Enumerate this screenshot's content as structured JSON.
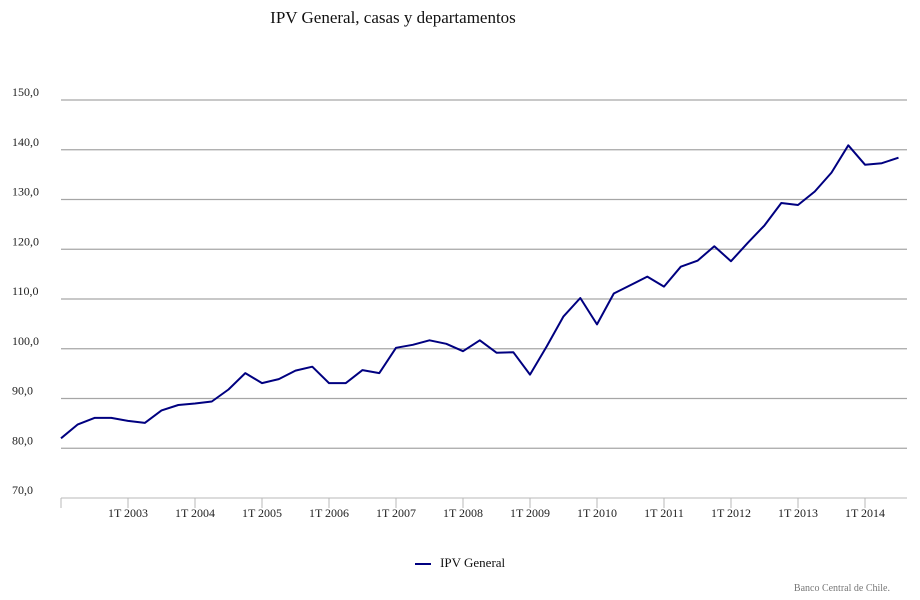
{
  "chart_data": {
    "type": "line",
    "title": "IPV General, casas y departamentos",
    "xlabel": "",
    "ylabel": "",
    "ylim": [
      70,
      150
    ],
    "yticks": [
      "70,0",
      "80,0",
      "90,0",
      "100,0",
      "110,0",
      "120,0",
      "130,0",
      "140,0",
      "150,0"
    ],
    "xticks": [
      "1T 2003",
      "1T 2004",
      "1T 2005",
      "1T 2006",
      "1T 2007",
      "1T 2008",
      "1T 2009",
      "1T 2010",
      "1T 2011",
      "1T 2012",
      "1T 2013",
      "1T 2014"
    ],
    "x": [
      "1T 2002",
      "2T 2002",
      "3T 2002",
      "4T 2002",
      "1T 2003",
      "2T 2003",
      "3T 2003",
      "4T 2003",
      "1T 2004",
      "2T 2004",
      "3T 2004",
      "4T 2004",
      "1T 2005",
      "2T 2005",
      "3T 2005",
      "4T 2005",
      "1T 2006",
      "2T 2006",
      "3T 2006",
      "4T 2006",
      "1T 2007",
      "2T 2007",
      "3T 2007",
      "4T 2007",
      "1T 2008",
      "2T 2008",
      "3T 2008",
      "4T 2008",
      "1T 2009",
      "2T 2009",
      "3T 2009",
      "4T 2009",
      "1T 2010",
      "2T 2010",
      "3T 2010",
      "4T 2010",
      "1T 2011",
      "2T 2011",
      "3T 2011",
      "4T 2011",
      "1T 2012",
      "2T 2012",
      "3T 2012",
      "4T 2012",
      "1T 2013",
      "2T 2013",
      "3T 2013",
      "4T 2013",
      "1T 2014",
      "2T 2014",
      "3T 2014"
    ],
    "series": [
      {
        "name": "IPV General",
        "color": "#000080",
        "values": [
          82.0,
          84.8,
          86.1,
          86.1,
          85.5,
          85.1,
          87.6,
          88.7,
          89.0,
          89.4,
          91.8,
          95.1,
          93.1,
          93.9,
          95.6,
          96.4,
          93.1,
          93.1,
          95.7,
          95.1,
          100.2,
          100.8,
          101.7,
          101.0,
          99.5,
          101.7,
          99.2,
          99.3,
          94.8,
          100.5,
          106.5,
          110.2,
          104.9,
          111.1,
          112.8,
          114.5,
          112.5,
          116.5,
          117.7,
          120.6,
          117.6,
          121.3,
          124.8,
          129.3,
          128.9,
          131.6,
          135.4,
          140.9,
          137.0,
          137.3,
          138.4
        ]
      }
    ],
    "legend": "bottom-center",
    "grid": true,
    "source_note": "Banco Central de Chile."
  }
}
